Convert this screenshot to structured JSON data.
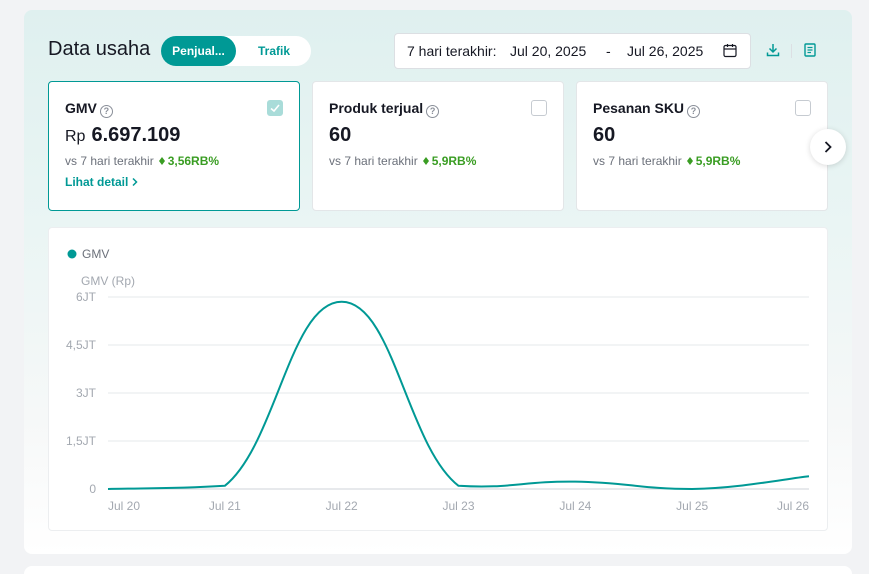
{
  "header": {
    "title": "Data usaha",
    "tabs": [
      {
        "label": "Penjual...",
        "active": true
      },
      {
        "label": "Trafik",
        "active": false
      }
    ],
    "date_range": {
      "label": "7 hari terakhir:",
      "start": "Jul 20, 2025",
      "separator": "-",
      "end": "Jul 26, 2025"
    }
  },
  "icons": {
    "calendar": "calendar-icon",
    "download": "download-icon",
    "report": "report-icon",
    "next": "chevron-right-icon",
    "info": "question-circle-icon"
  },
  "metrics": [
    {
      "title": "GMV",
      "prefix": "Rp",
      "value": "6.697.109",
      "compare": "vs 7 hari terakhir",
      "delta": "3,56RB%",
      "link": "Lihat detail",
      "selected": true
    },
    {
      "title": "Produk terjual",
      "prefix": "",
      "value": "60",
      "compare": "vs 7 hari terakhir",
      "delta": "5,9RB%",
      "link": "",
      "selected": false
    },
    {
      "title": "Pesanan SKU",
      "prefix": "",
      "value": "60",
      "compare": "vs 7 hari terakhir",
      "delta": "5,9RB%",
      "link": "",
      "selected": false
    }
  ],
  "colors": {
    "accent": "#009995",
    "positive": "#3a9d23",
    "grid": "#e6e8eb",
    "tick": "#a3a8b0"
  },
  "chart_data": {
    "type": "line",
    "legend": "GMV",
    "ylabel": "GMV (Rp)",
    "x": [
      "Jul 20",
      "Jul 21",
      "Jul 22",
      "Jul 23",
      "Jul 24",
      "Jul 25",
      "Jul 26"
    ],
    "series": [
      {
        "name": "GMV",
        "values": [
          0,
          100000,
          5850000,
          100000,
          230000,
          0,
          400000
        ]
      }
    ],
    "yticks": [
      {
        "value": 0,
        "label": "0"
      },
      {
        "value": 1500000,
        "label": "1,5JT"
      },
      {
        "value": 3000000,
        "label": "3JT"
      },
      {
        "value": 4500000,
        "label": "4,5JT"
      },
      {
        "value": 6000000,
        "label": "6JT"
      }
    ],
    "ylim": [
      0,
      6000000
    ],
    "grid": true,
    "legend_position": "top-left"
  }
}
